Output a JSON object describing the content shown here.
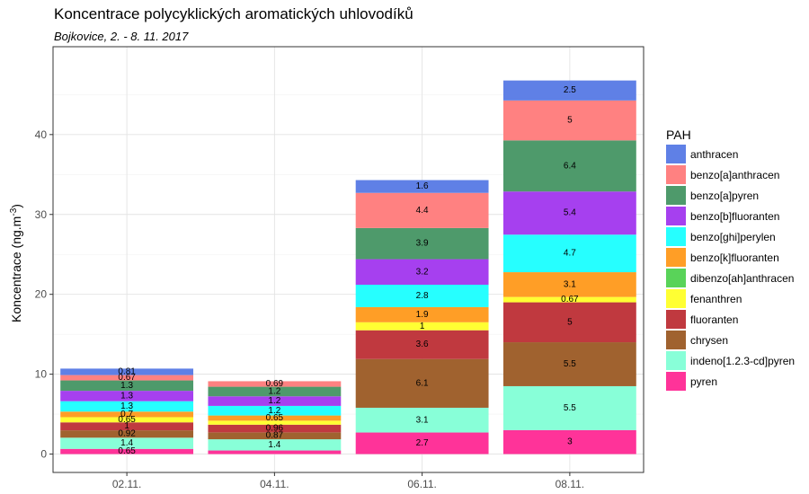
{
  "chart_data": {
    "type": "bar",
    "stacked": true,
    "title": "Koncentrace polycyklických aromatických uhlovodíků",
    "subtitle": "Bojkovice, 2. - 8. 11. 2017",
    "ylabel_prefix": "Koncentrace  (ng.m",
    "ylabel_sup": "-3",
    "ylabel_suffix": ")",
    "xlabel": "",
    "ylim": [
      -2.3,
      51
    ],
    "yticks": [
      0,
      10,
      20,
      30,
      40
    ],
    "grid": true,
    "legend_title": "PAH",
    "legend_position": "right",
    "categories": [
      "02.11.",
      "04.11.",
      "06.11.",
      "08.11."
    ],
    "series": [
      {
        "name": "pyren",
        "color": "#FF3399",
        "values": [
          0.65,
          0.45,
          2.7,
          3
        ],
        "labels": [
          "0.65",
          "",
          "2.7",
          "3"
        ]
      },
      {
        "name": "indeno[1.2.3-cd]pyren",
        "color": "#88FFD8",
        "values": [
          1.4,
          1.4,
          3.1,
          5.5
        ],
        "labels": [
          "1.4",
          "1.4",
          "3.1",
          "5.5"
        ]
      },
      {
        "name": "chrysen",
        "color": "#A0622F",
        "values": [
          0.92,
          0.87,
          6.1,
          5.5
        ],
        "labels": [
          "0.92",
          "0.87",
          "6.1",
          "5.5"
        ]
      },
      {
        "name": "fluoranten",
        "color": "#C0393F",
        "values": [
          1,
          0.96,
          3.6,
          5
        ],
        "labels": [
          "1",
          "0.96",
          "3.6",
          "5"
        ]
      },
      {
        "name": "fenanthren",
        "color": "#FFFF33",
        "values": [
          0.65,
          0.5,
          1,
          0.67
        ],
        "labels": [
          "0.65",
          "",
          "1",
          "0.67"
        ]
      },
      {
        "name": "dibenzo[ah]anthracen",
        "color": "#59D359",
        "values": [
          0,
          0,
          0,
          0
        ],
        "labels": [
          "",
          "",
          "",
          ""
        ]
      },
      {
        "name": "benzo[k]fluoranten",
        "color": "#FF9E26",
        "values": [
          0.7,
          0.65,
          1.9,
          3.1
        ],
        "labels": [
          "0.7",
          "0.65",
          "1.9",
          "3.1"
        ]
      },
      {
        "name": "benzo[ghi]perylen",
        "color": "#26FFFF",
        "values": [
          1.3,
          1.2,
          2.8,
          4.7
        ],
        "labels": [
          "1.3",
          "1.2",
          "2.8",
          "4.7"
        ]
      },
      {
        "name": "benzo[b]fluoranten",
        "color": "#A640EF",
        "values": [
          1.3,
          1.2,
          3.2,
          5.4
        ],
        "labels": [
          "1.3",
          "1.2",
          "3.2",
          "5.4"
        ]
      },
      {
        "name": "benzo[a]pyren",
        "color": "#4E9A6B",
        "values": [
          1.3,
          1.2,
          3.9,
          6.4
        ],
        "labels": [
          "1.3",
          "1.2",
          "3.9",
          "6.4"
        ]
      },
      {
        "name": "benzo[a]anthracen",
        "color": "#FF8181",
        "values": [
          0.67,
          0.69,
          4.4,
          5
        ],
        "labels": [
          "0.67",
          "0.69",
          "4.4",
          "5"
        ]
      },
      {
        "name": "anthracen",
        "color": "#5F80E6",
        "values": [
          0.81,
          0,
          1.6,
          2.5
        ],
        "labels": [
          "0.81",
          "",
          "1.6",
          "2.5"
        ]
      }
    ],
    "legend_order": [
      "anthracen",
      "benzo[a]anthracen",
      "benzo[a]pyren",
      "benzo[b]fluoranten",
      "benzo[ghi]perylen",
      "benzo[k]fluoranten",
      "dibenzo[ah]anthracen",
      "fenanthren",
      "fluoranten",
      "chrysen",
      "indeno[1.2.3-cd]pyren",
      "pyren"
    ]
  }
}
